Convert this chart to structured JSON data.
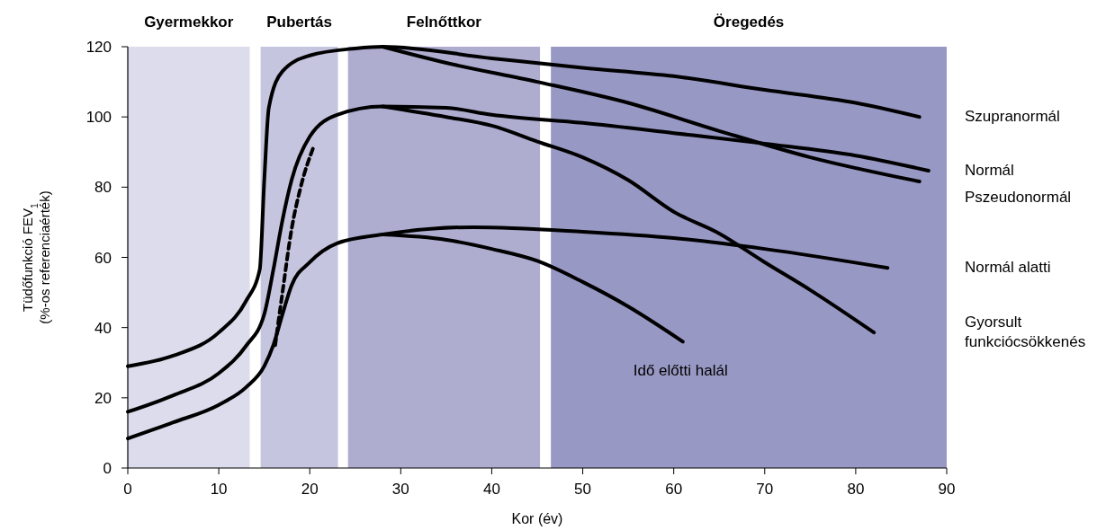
{
  "chart_data": {
    "type": "line",
    "xlabel": "Kor (év)",
    "ylabel": "Tüdőfunkció FEV$_{1}$\n(%-os referenciaérték)",
    "xlim": [
      0,
      90
    ],
    "ylim": [
      0,
      120
    ],
    "xticks": [
      0,
      10,
      20,
      30,
      40,
      50,
      60,
      70,
      80,
      90
    ],
    "yticks": [
      0,
      20,
      40,
      60,
      80,
      100,
      120
    ],
    "grid": false,
    "line_style": "solid",
    "marker": "none",
    "bands": [
      {
        "axis": "x",
        "from": 0,
        "to": 13.4,
        "label": "Gyermekkor",
        "color": "#dddcec"
      },
      {
        "axis": "x",
        "from": 14.6,
        "to": 23.1,
        "label": "Pubertás",
        "color": "#c6c5df"
      },
      {
        "axis": "x",
        "from": 24.2,
        "to": 45.3,
        "label": "Felnőttkor",
        "color": "#aeadd0"
      },
      {
        "axis": "x",
        "from": 46.5,
        "to": 90,
        "label": "Öregedés",
        "color": "#9898c4"
      }
    ],
    "annotations": [
      {
        "text": "Idő előtti halál",
        "x": 61,
        "y": 36
      }
    ],
    "series": [
      {
        "name": "Szupranormál",
        "color": "#000000",
        "x": [
          0,
          5,
          10,
          13,
          14.5,
          15,
          15.5,
          17,
          20,
          25,
          28,
          40,
          50,
          60,
          70,
          80,
          87
        ],
        "values": [
          29,
          32,
          38.6,
          47.6,
          56.5,
          82,
          102.6,
          113,
          117.5,
          119.5,
          120,
          116.7,
          114,
          111.6,
          107.7,
          104,
          100
        ]
      },
      {
        "name": "Pszeudonormál",
        "color": "#000000",
        "x": [
          28,
          35,
          45,
          55,
          65,
          75,
          87
        ],
        "values": [
          120,
          115.4,
          110,
          104,
          96,
          88.5,
          81.6
        ]
      },
      {
        "name": "Normál",
        "color": "#000000",
        "x": [
          0,
          5,
          10,
          13,
          15,
          16,
          17,
          18,
          20,
          23,
          28,
          35,
          40,
          50,
          60,
          70,
          80,
          88
        ],
        "values": [
          16,
          20.7,
          27,
          34.8,
          43.8,
          56.5,
          70.6,
          82,
          94.4,
          100.6,
          103,
          102.6,
          100.6,
          98.3,
          95.4,
          92.4,
          89,
          84.7
        ]
      },
      {
        "name": "Gyorsult funkciócsökkenés",
        "color": "#000000",
        "x": [
          28,
          35,
          40,
          45,
          50,
          55,
          60,
          65,
          70,
          75,
          82
        ],
        "values": [
          103,
          100,
          97.5,
          93,
          88.5,
          82,
          73,
          66.8,
          58.6,
          50.7,
          38.6
        ]
      },
      {
        "color": "#000000",
        "line_style": "dashed",
        "x": [
          16.2,
          17,
          18,
          19,
          20.5
        ],
        "values": [
          35,
          50,
          68,
          80,
          92
        ]
      },
      {
        "name": "Normál alatti",
        "color": "#000000",
        "x": [
          0,
          5,
          10,
          13,
          15,
          16,
          17,
          18,
          20,
          23,
          28,
          38,
          50,
          60,
          70,
          83.5
        ],
        "values": [
          8.4,
          13,
          18,
          23,
          29,
          35,
          43.8,
          52,
          58.6,
          64,
          66.5,
          68.6,
          67.3,
          65.5,
          62.4,
          57
        ]
      },
      {
        "color": "#000000",
        "x": [
          28,
          35,
          40,
          45,
          50,
          55,
          61
        ],
        "values": [
          66.5,
          65,
          62.4,
          59,
          53,
          46,
          36
        ]
      }
    ]
  }
}
